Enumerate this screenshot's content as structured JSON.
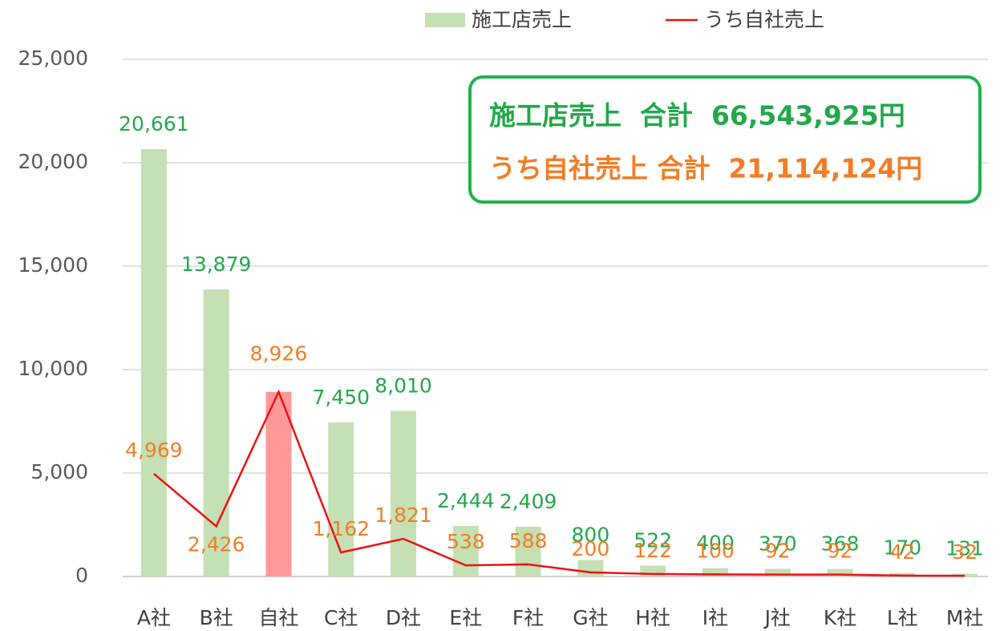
{
  "chart_data": {
    "type": "bar_line",
    "legend": "top",
    "grid": true,
    "categories": [
      "A社",
      "B社",
      "自社",
      "C社",
      "D社",
      "E社",
      "F社",
      "G社",
      "H社",
      "I社",
      "J社",
      "K社",
      "L社",
      "M社"
    ],
    "series": [
      {
        "name": "施工店売上",
        "type": "bar",
        "color": "#c5e0b4",
        "label_color": "#22a84a",
        "colors": [
          "#c5e0b4",
          "#c5e0b4",
          "#ff9999",
          "#c5e0b4",
          "#c5e0b4",
          "#c5e0b4",
          "#c5e0b4",
          "#c5e0b4",
          "#c5e0b4",
          "#c5e0b4",
          "#c5e0b4",
          "#c5e0b4",
          "#c5e0b4",
          "#c5e0b4"
        ],
        "values": [
          20661,
          13879,
          8926,
          7450,
          8010,
          2444,
          2409,
          800,
          522,
          400,
          370,
          368,
          170,
          131
        ],
        "value_labels": [
          "20,661",
          "13,879",
          "8,926",
          "7,450",
          "8,010",
          "2,444",
          "2,409",
          "800",
          "522",
          "400",
          "370",
          "368",
          "170",
          "131"
        ]
      },
      {
        "name": "うち自社売上",
        "type": "line",
        "color": "#ee1111",
        "label_color": "#f07d26",
        "values": [
          4969,
          2426,
          8926,
          1162,
          1821,
          538,
          588,
          200,
          122,
          100,
          92,
          92,
          42,
          32
        ],
        "value_labels": [
          "4,969",
          "2,426",
          "8,926",
          "1,162",
          "1,821",
          "538",
          "588",
          "200",
          "122",
          "100",
          "92",
          "92",
          "42",
          "32"
        ]
      }
    ],
    "ylim": [
      0,
      25000
    ],
    "yticks": [
      0,
      {
        "value": 5000,
        "label": "5,000"
      },
      {
        "value": 10000,
        "label": "10,000"
      },
      {
        "value": 15000,
        "label": "15,000"
      },
      {
        "value": 20000,
        "label": "20,000"
      },
      {
        "value": 25000,
        "label": "25,000"
      }
    ],
    "annotations": [
      {
        "text": "施工店売上  合計  66,543,925円",
        "color": "#22a84a"
      },
      {
        "text": "うち自社売上 合計  21,114,124円",
        "color": "#f07d26"
      }
    ],
    "annotation_border": "#22b14c"
  }
}
